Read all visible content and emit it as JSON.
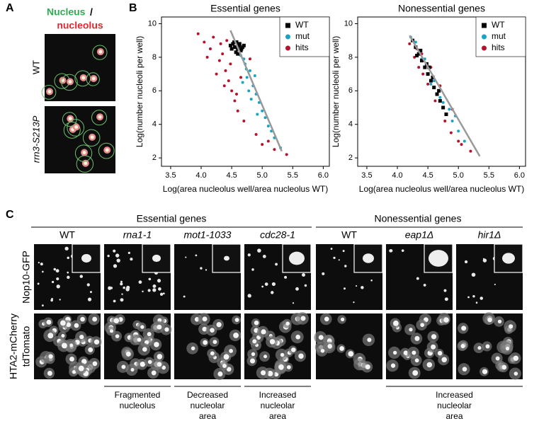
{
  "panel_a": {
    "label": "A",
    "title_nucleus": "Nucleus",
    "title_sep": "/",
    "title_nucleolus": "nucleolus",
    "rows": [
      "WT",
      "rrn3-S213P"
    ]
  },
  "panel_b": {
    "label": "B"
  },
  "chart_data": [
    {
      "type": "scatter",
      "title": "Essential genes",
      "xlabel": "Log(area nucleolus well/area nucleolus WT)",
      "ylabel": "Log(number nucleoli per well)",
      "xlim": [
        3.35,
        6.1
      ],
      "ylim": [
        1.5,
        10.4
      ],
      "xticks": [
        3.5,
        {
          "value": 4,
          "label": "4.0"
        },
        4.5,
        {
          "value": 5,
          "label": "5.0"
        },
        5.5,
        {
          "value": 6,
          "label": "6.0"
        }
      ],
      "yticks": [
        2,
        4,
        6,
        8,
        10
      ],
      "legend": "upper right",
      "series": [
        {
          "name": "hits",
          "color": "#b5132c",
          "marker": "circle",
          "x": [
            3.95,
            4.05,
            4.15,
            4.2,
            4.3,
            4.35,
            4.4,
            4.45,
            4.25,
            4.1,
            4.5,
            4.55,
            4.38,
            4.6,
            4.48,
            4.7,
            4.9,
            5.0,
            5.2,
            5.4,
            4.8,
            4.65,
            4.32,
            4.58,
            4.42,
            5.1
          ],
          "values": [
            9.4,
            8.9,
            8.5,
            9.2,
            7.8,
            8.2,
            7.2,
            6.6,
            7.0,
            8.0,
            6.0,
            5.4,
            6.3,
            4.8,
            7.6,
            4.2,
            3.4,
            2.8,
            2.5,
            2.2,
            7.9,
            6.8,
            8.8,
            5.8,
            9.0,
            3.0
          ]
        },
        {
          "name": "mut",
          "color": "#1ba3c6",
          "marker": "circle",
          "x": [
            4.65,
            4.72,
            4.8,
            4.75,
            4.85,
            4.9,
            4.7,
            4.95,
            5.0,
            5.05,
            4.78,
            4.88,
            5.1,
            5.2,
            5.3,
            4.68,
            4.82,
            4.92,
            5.15,
            4.74
          ],
          "values": [
            8.1,
            7.6,
            7.2,
            6.8,
            6.3,
            5.8,
            7.9,
            5.3,
            4.8,
            4.4,
            6.0,
            6.9,
            3.9,
            3.2,
            2.6,
            6.5,
            5.5,
            4.6,
            3.6,
            7.3
          ]
        },
        {
          "name": "WT",
          "color": "#000000",
          "marker": "square",
          "x": [
            4.48,
            4.52,
            4.55,
            4.58,
            4.6,
            4.62,
            4.65,
            4.5,
            4.57,
            4.63,
            4.68,
            4.54,
            4.6,
            4.66,
            4.7,
            4.56
          ],
          "values": [
            8.7,
            8.8,
            8.6,
            8.9,
            8.5,
            8.7,
            8.4,
            8.5,
            8.3,
            8.8,
            8.6,
            8.9,
            8.2,
            8.5,
            8.7,
            8.6
          ]
        }
      ],
      "legend_order": [
        2,
        1,
        0
      ],
      "trend_line": {
        "color": "#999999",
        "x": [
          4.48,
          5.32
        ],
        "values": [
          9.6,
          2.4
        ]
      }
    },
    {
      "type": "scatter",
      "title": "Nonessential genes",
      "xlabel": "Log(area nucleolus well/area nucleolus WT)",
      "ylabel": "Log(number nucleoli per well)",
      "xlim": [
        3.35,
        6.1
      ],
      "ylim": [
        1.5,
        10.4
      ],
      "xticks": [
        3.5,
        {
          "value": 4,
          "label": "4.0"
        },
        4.5,
        {
          "value": 5,
          "label": "5.0"
        },
        5.5,
        {
          "value": 6,
          "label": "6.0"
        }
      ],
      "yticks": [
        2,
        4,
        6,
        8,
        10
      ],
      "legend": "upper right",
      "series": [
        {
          "name": "hits",
          "color": "#b5132c",
          "marker": "circle",
          "x": [
            4.2,
            4.28,
            4.35,
            4.42,
            4.5,
            4.62,
            4.78,
            4.88,
            5.05,
            5.2,
            4.4,
            4.55,
            4.32,
            4.7,
            5.0,
            4.9
          ],
          "values": [
            8.8,
            8.0,
            7.4,
            7.0,
            6.4,
            5.4,
            4.2,
            3.5,
            2.8,
            2.4,
            8.2,
            7.4,
            8.5,
            6.3,
            3.0,
            4.9
          ]
        },
        {
          "name": "mut",
          "color": "#1ba3c6",
          "marker": "circle",
          "x": [
            4.22,
            4.3,
            4.45,
            4.6,
            4.75,
            4.9,
            5.0,
            5.1,
            4.85,
            4.4,
            4.55,
            4.95,
            4.7
          ],
          "values": [
            9.2,
            8.9,
            7.9,
            6.6,
            5.3,
            4.2,
            3.6,
            3.0,
            4.9,
            7.9,
            6.4,
            4.5,
            5.6
          ]
        },
        {
          "name": "WT",
          "color": "#000000",
          "marker": "square",
          "x": [
            4.25,
            4.3,
            4.35,
            4.4,
            4.45,
            4.5,
            4.55,
            4.6,
            4.65,
            4.7,
            4.75,
            4.8,
            4.38,
            4.48,
            4.58,
            4.68,
            4.32,
            4.52
          ],
          "values": [
            9.0,
            8.6,
            8.2,
            7.8,
            7.4,
            7.0,
            6.6,
            6.2,
            5.8,
            5.4,
            5.0,
            4.6,
            8.4,
            7.6,
            6.8,
            6.0,
            8.1,
            7.4
          ]
        }
      ],
      "legend_order": [
        2,
        1,
        0
      ],
      "trend_line": {
        "color": "#999999",
        "x": [
          4.2,
          5.35
        ],
        "values": [
          9.3,
          2.1
        ]
      }
    }
  ],
  "panel_c": {
    "label": "C",
    "groups": [
      "Essential genes",
      "Nonessential genes"
    ],
    "columns": [
      "WT",
      "rna1-1",
      "mot1-1033",
      "cdc28-1",
      "WT",
      "eap1Δ",
      "hir1Δ"
    ],
    "rows": [
      [
        "Nop10-GFP"
      ],
      [
        "HTA2-mCherry",
        "tdTomato"
      ]
    ],
    "annotations": [
      [
        "Fragmented",
        "nucleolus"
      ],
      [
        "Decreased",
        "nucleolar",
        "area"
      ],
      [
        "Increased",
        "nucleolar",
        "area"
      ],
      [
        "Increased",
        "nucleolar",
        "area"
      ]
    ]
  }
}
